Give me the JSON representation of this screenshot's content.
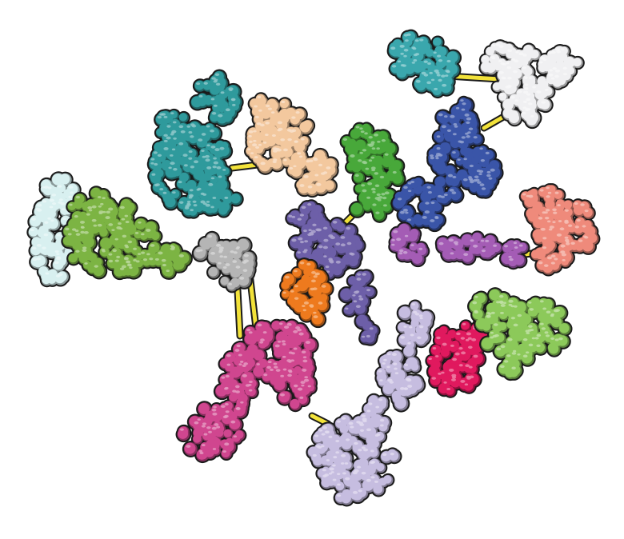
{
  "image": {
    "subject": "protein-complex-illustration",
    "background_color": "#ffffff",
    "outline_color": "#1a1a1a",
    "linker_color": "#f2e23a",
    "domains": [
      {
        "name": "teal-domain-top-right",
        "color": "#3aa7ad"
      },
      {
        "name": "white-domain-top-right",
        "color": "#f0f0f2"
      },
      {
        "name": "teal-domain-upper-left",
        "color": "#2f9a9c"
      },
      {
        "name": "peach-domain",
        "color": "#f3c89e"
      },
      {
        "name": "green-domain-top",
        "color": "#48a83a"
      },
      {
        "name": "blue-domain",
        "color": "#3a55a8"
      },
      {
        "name": "pale-cyan-domain-left",
        "color": "#d8f0f0"
      },
      {
        "name": "olive-green-domain-left",
        "color": "#7cb443"
      },
      {
        "name": "grey-linker-domain",
        "color": "#b5b5b5"
      },
      {
        "name": "purple-core-domain",
        "color": "#6d5fa8"
      },
      {
        "name": "orange-core-domain",
        "color": "#ee7a1e"
      },
      {
        "name": "violet-arm-domain",
        "color": "#a45cb5"
      },
      {
        "name": "salmon-domain-right",
        "color": "#ef8a7b"
      },
      {
        "name": "magenta-domain",
        "color": "#d0468f"
      },
      {
        "name": "lavender-domain",
        "color": "#c6bde0"
      },
      {
        "name": "crimson-domain",
        "color": "#e0195e"
      },
      {
        "name": "light-green-domain-right",
        "color": "#8cc95a"
      }
    ]
  }
}
